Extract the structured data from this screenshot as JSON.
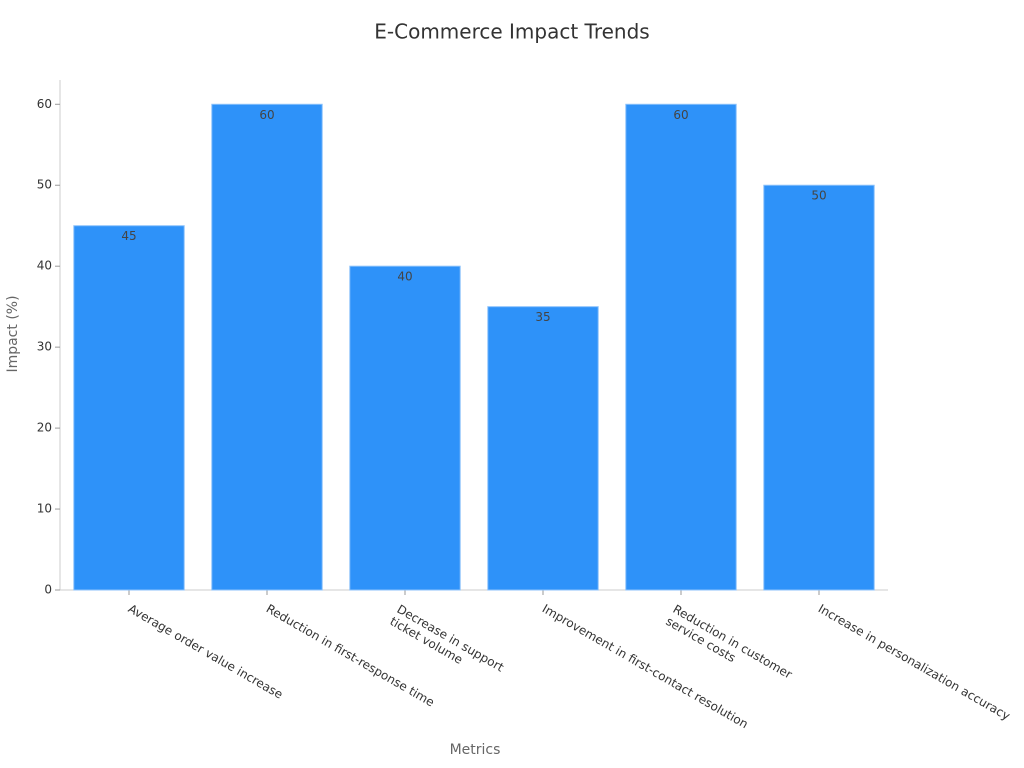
{
  "chart_data": {
    "type": "bar",
    "title": "E-Commerce Impact Trends",
    "x_label": "Metrics",
    "y_label": "Impact (%)",
    "categories": [
      "Average order value increase",
      "Reduction in first-response time",
      "Decrease in support\nticket volume",
      "Improvement in first-contact resolution",
      "Reduction in customer\nservice costs",
      "Increase in personalization accuracy"
    ],
    "values": [
      45,
      60,
      40,
      35,
      60,
      50
    ],
    "color": "#2e92f9",
    "ylim": [
      0,
      63
    ],
    "yticks": [
      0,
      10,
      20,
      30,
      40,
      50,
      60
    ],
    "grid": false
  }
}
